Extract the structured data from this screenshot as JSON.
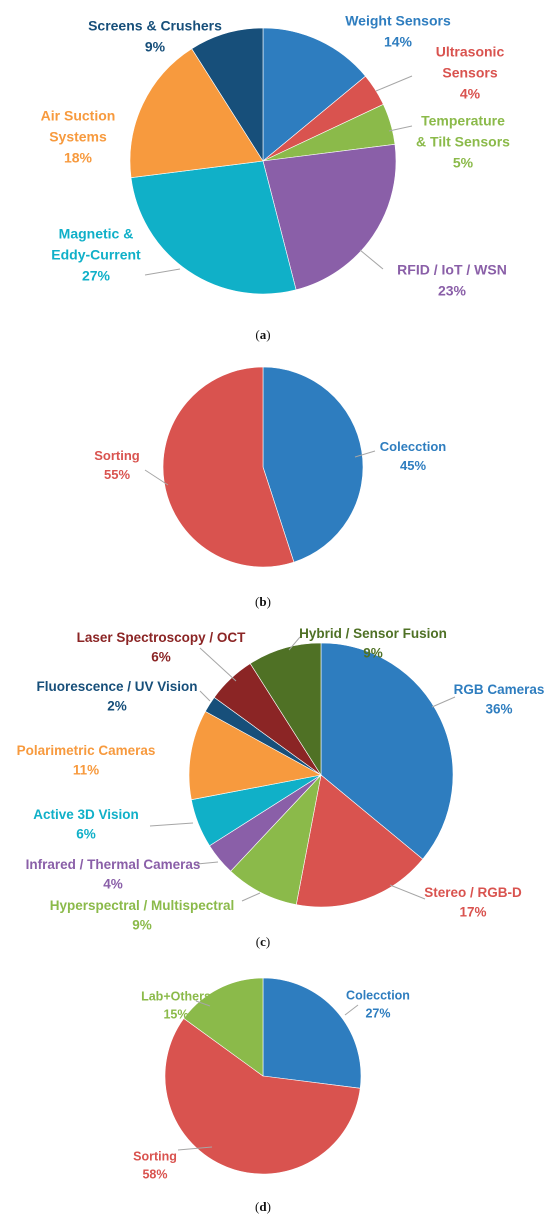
{
  "colors": {
    "blue": "#2e7dbf",
    "red": "#d9534f",
    "green": "#8bba4a",
    "purple": "#8a5fa8",
    "cyan": "#10b0c8",
    "orange": "#f79a3e",
    "navy": "#174f7a",
    "maroon": "#8b2525",
    "olive": "#4f7125"
  },
  "chart_data": [
    {
      "type": "pie",
      "caption": "(a)",
      "slices": [
        {
          "label": "Weight Sensors",
          "value": 14,
          "text": "14%",
          "color": "#2e7dbf"
        },
        {
          "label": "Ultrasonic Sensors",
          "value": 4,
          "text": "4%",
          "color": "#d9534f"
        },
        {
          "label": "Temperature & Tilt Sensors",
          "value": 5,
          "text": "5%",
          "color": "#8bba4a"
        },
        {
          "label": "RFID / IoT / WSN",
          "value": 23,
          "text": "23%",
          "color": "#8a5fa8"
        },
        {
          "label": "Magnetic & Eddy-Current",
          "value": 27,
          "text": "27%",
          "color": "#10b0c8"
        },
        {
          "label": "Air Suction Systems",
          "value": 18,
          "text": "18%",
          "color": "#f79a3e"
        },
        {
          "label": "Screens & Crushers",
          "value": 9,
          "text": "9%",
          "color": "#174f7a"
        }
      ]
    },
    {
      "type": "pie",
      "caption": "(b)",
      "slices": [
        {
          "label": "Colecction",
          "value": 45,
          "text": "45%",
          "color": "#2e7dbf"
        },
        {
          "label": "Sorting",
          "value": 55,
          "text": "55%",
          "color": "#d9534f"
        }
      ]
    },
    {
      "type": "pie",
      "caption": "(c)",
      "slices": [
        {
          "label": "RGB Cameras",
          "value": 36,
          "text": "36%",
          "color": "#2e7dbf"
        },
        {
          "label": "Stereo / RGB-D",
          "value": 17,
          "text": "17%",
          "color": "#d9534f"
        },
        {
          "label": "Hyperspectral / Multispectral",
          "value": 9,
          "text": "9%",
          "color": "#8bba4a"
        },
        {
          "label": "Infrared / Thermal Cameras",
          "value": 4,
          "text": "4%",
          "color": "#8a5fa8"
        },
        {
          "label": "Active 3D Vision",
          "value": 6,
          "text": "6%",
          "color": "#10b0c8"
        },
        {
          "label": "Polarimetric Cameras",
          "value": 11,
          "text": "11%",
          "color": "#f79a3e"
        },
        {
          "label": "Fluorescence / UV Vision",
          "value": 2,
          "text": "2%",
          "color": "#174f7a"
        },
        {
          "label": "Laser Spectroscopy / OCT",
          "value": 6,
          "text": "6%",
          "color": "#8b2525"
        },
        {
          "label": "Hybrid / Sensor Fusion",
          "value": 9,
          "text": "9%",
          "color": "#4f7125"
        }
      ]
    },
    {
      "type": "pie",
      "caption": "(d)",
      "slices": [
        {
          "label": "Colecction",
          "value": 27,
          "text": "27%",
          "color": "#2e7dbf"
        },
        {
          "label": "Sorting",
          "value": 58,
          "text": "58%",
          "color": "#d9534f"
        },
        {
          "label": "Lab+Others",
          "value": 15,
          "text": "15%",
          "color": "#8bba4a"
        }
      ]
    }
  ]
}
